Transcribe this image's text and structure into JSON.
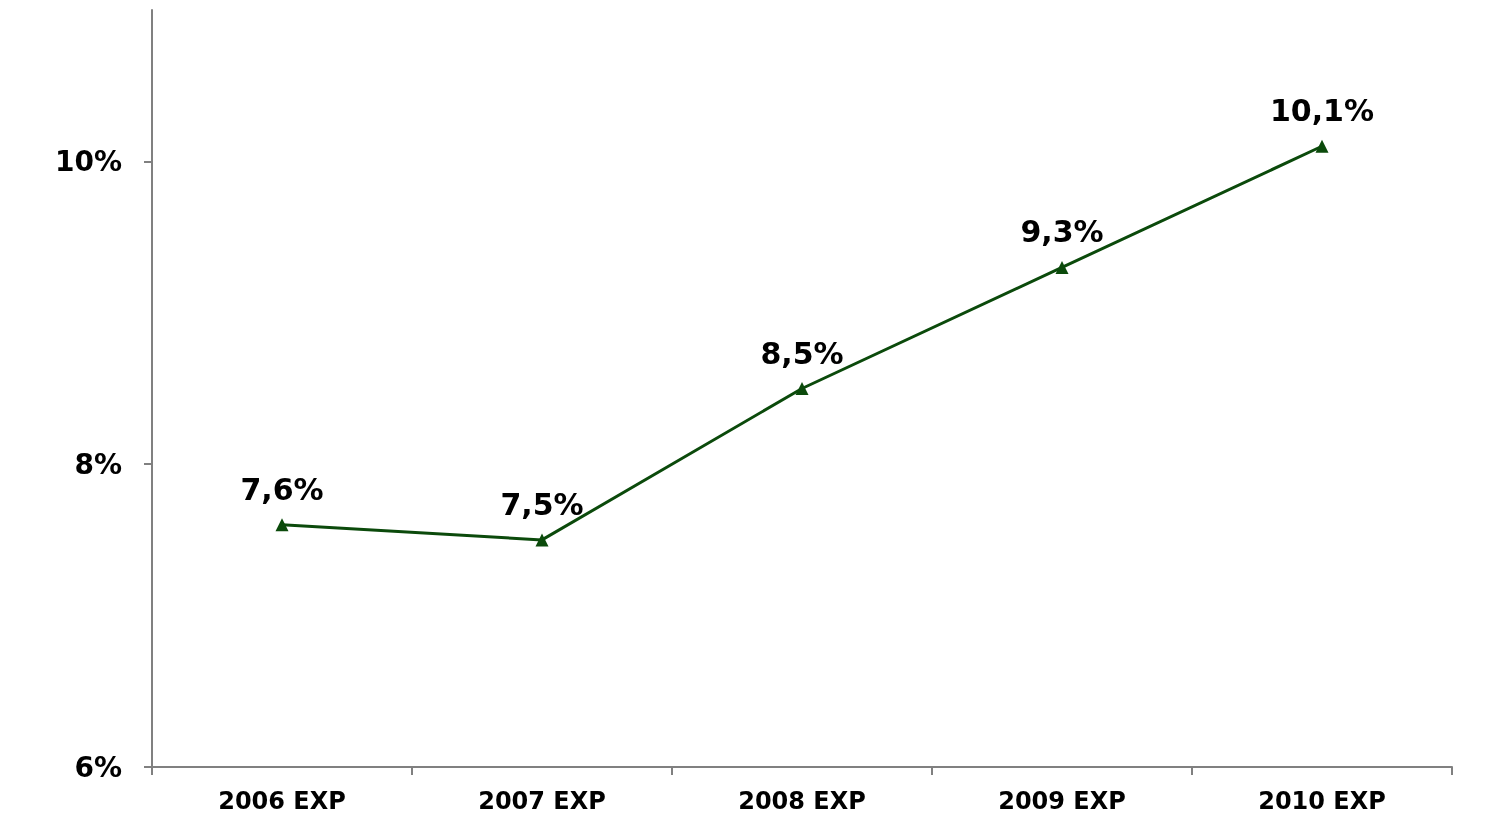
{
  "chart_data": {
    "type": "line",
    "categories": [
      "2006 EXP",
      "2007 EXP",
      "2008 EXP",
      "2009 EXP",
      "2010 EXP"
    ],
    "series": [
      {
        "color": "#0b4a0b",
        "values": [
          7.6,
          7.5,
          8.5,
          9.3,
          10.1
        ],
        "value_labels": [
          "7,6%",
          "7,5%",
          "8,5%",
          "9,3%",
          "10,1%"
        ]
      }
    ],
    "ylim": [
      6,
      11
    ],
    "yticks": [
      {
        "value": 6,
        "label": "6%"
      },
      {
        "value": 8,
        "label": "8%"
      },
      {
        "value": 10,
        "label": "10%"
      }
    ],
    "marker": "triangle",
    "line_style": "solid"
  }
}
